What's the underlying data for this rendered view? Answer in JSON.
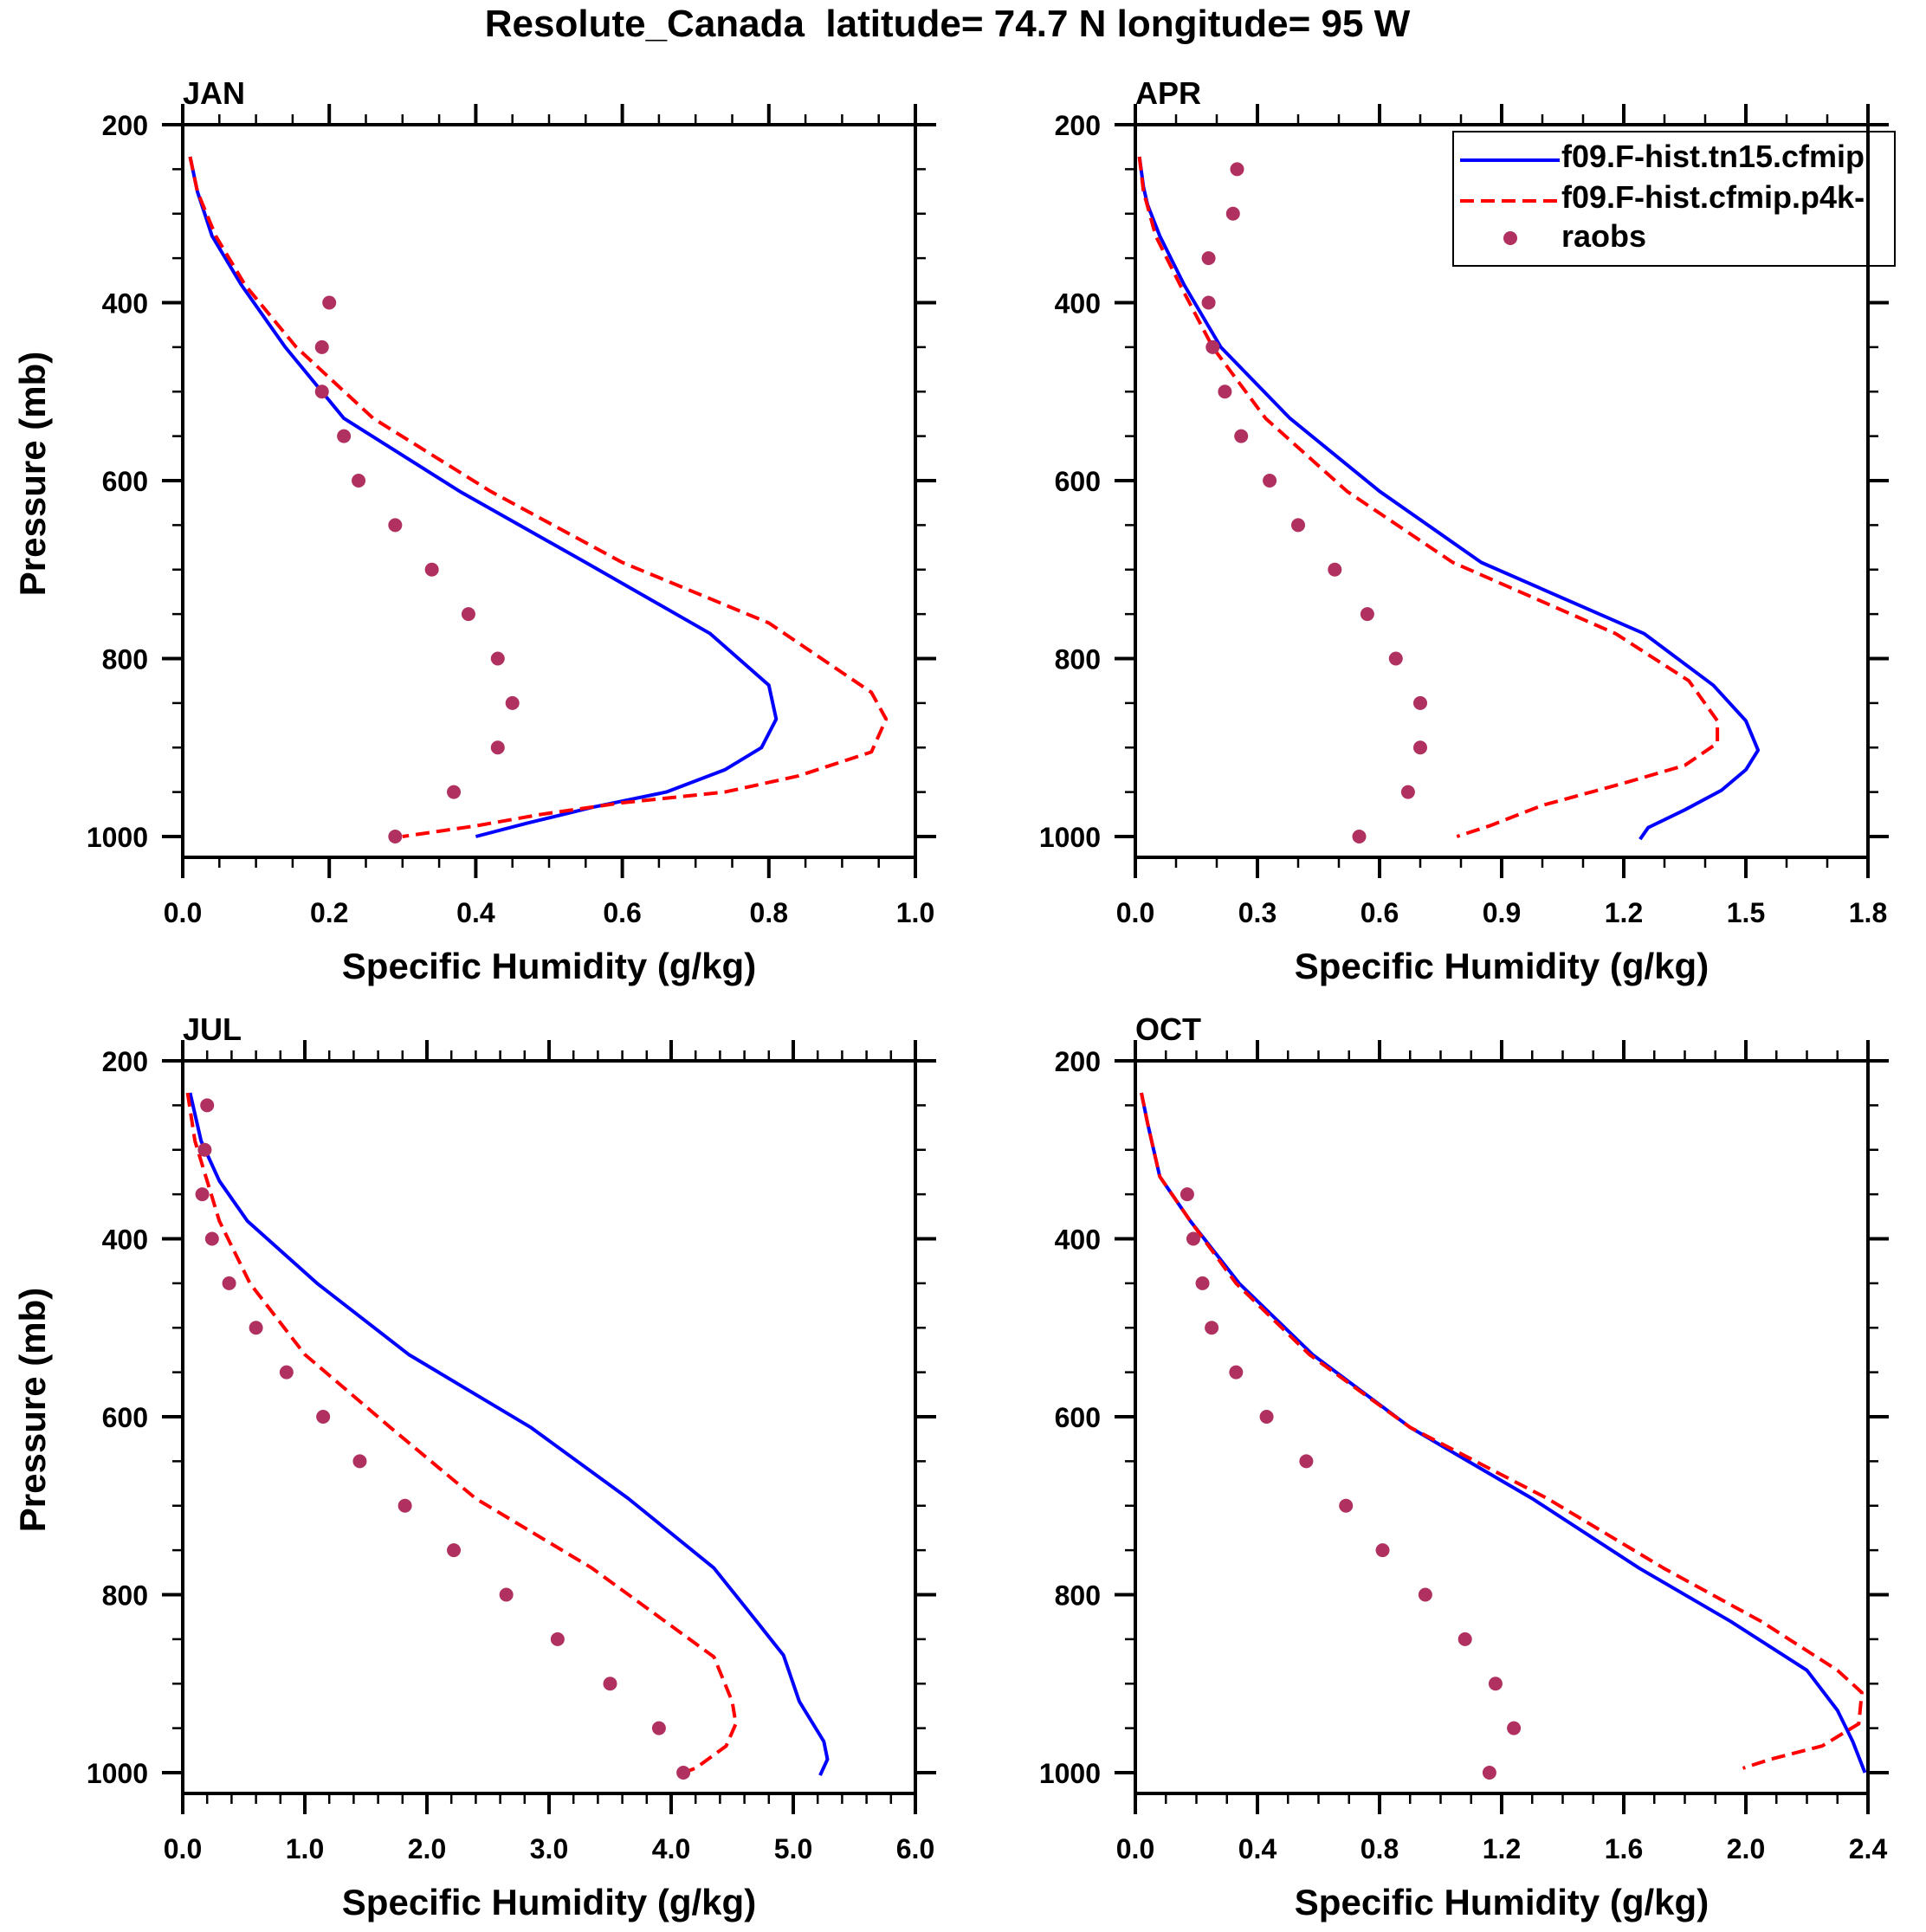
{
  "chart_data": {
    "type": "line",
    "title": "Resolute_Canada  latitude= 74.7 N longitude= 95 W",
    "layout": "2x2 grid",
    "legend": {
      "placement": "top-right of APR panel",
      "entries": [
        {
          "name": "f09.F-hist.tn15.cfmip",
          "style": "solid",
          "color": "#0000ff"
        },
        {
          "name": "f09.F-hist.cfmip.p4k-",
          "style": "dashed",
          "color": "#ff0000"
        },
        {
          "name": "raobs",
          "style": "marker",
          "color": "#b03060"
        }
      ]
    },
    "panels": [
      {
        "label": "JAN",
        "xlabel": "Specific Humidity (g/kg)",
        "ylabel": "Pressure (mb)",
        "xlim": [
          0,
          1.0
        ],
        "xticks": [
          "0.0",
          "0.2",
          "0.4",
          "0.6",
          "0.8",
          "1.0"
        ],
        "xminor_per_major": 3,
        "ylim": [
          200,
          1023
        ],
        "yticks": [
          "200",
          "400",
          "600",
          "800",
          "1000"
        ],
        "y_inverted": true,
        "series": [
          {
            "name": "f09.F-hist.tn15.cfmip",
            "points": [
              [
                0.01,
                236
              ],
              [
                0.02,
                275
              ],
              [
                0.04,
                325
              ],
              [
                0.08,
                380
              ],
              [
                0.14,
                450
              ],
              [
                0.22,
                530
              ],
              [
                0.38,
                613
              ],
              [
                0.55,
                692
              ],
              [
                0.72,
                772
              ],
              [
                0.8,
                830
              ],
              [
                0.81,
                868
              ],
              [
                0.79,
                900
              ],
              [
                0.74,
                925
              ],
              [
                0.66,
                950
              ],
              [
                0.56,
                967
              ],
              [
                0.47,
                985
              ],
              [
                0.4,
                1000
              ]
            ]
          },
          {
            "name": "f09.F-hist.cfmip.p4k-",
            "points": [
              [
                0.01,
                236
              ],
              [
                0.02,
                275
              ],
              [
                0.045,
                325
              ],
              [
                0.085,
                380
              ],
              [
                0.155,
                450
              ],
              [
                0.26,
                530
              ],
              [
                0.42,
                612
              ],
              [
                0.6,
                692
              ],
              [
                0.8,
                760
              ],
              [
                0.94,
                838
              ],
              [
                0.96,
                868
              ],
              [
                0.94,
                905
              ],
              [
                0.84,
                932
              ],
              [
                0.74,
                950
              ],
              [
                0.6,
                962
              ],
              [
                0.49,
                975
              ],
              [
                0.4,
                988
              ],
              [
                0.3,
                1000
              ]
            ]
          },
          {
            "name": "raobs",
            "points": [
              [
                0.2,
                400
              ],
              [
                0.19,
                450
              ],
              [
                0.19,
                500
              ],
              [
                0.22,
                550
              ],
              [
                0.24,
                600
              ],
              [
                0.29,
                650
              ],
              [
                0.34,
                700
              ],
              [
                0.39,
                750
              ],
              [
                0.43,
                800
              ],
              [
                0.45,
                850
              ],
              [
                0.43,
                900
              ],
              [
                0.37,
                950
              ],
              [
                0.29,
                1000
              ]
            ]
          }
        ]
      },
      {
        "label": "APR",
        "xlabel": "Specific Humidity (g/kg)",
        "ylabel": "",
        "xlim": [
          0,
          1.8
        ],
        "xticks": [
          "0.0",
          "0.3",
          "0.6",
          "0.9",
          "1.2",
          "1.5",
          "1.8"
        ],
        "xminor_per_major": 2,
        "ylim": [
          200,
          1023
        ],
        "yticks": [
          "200",
          "400",
          "600",
          "800",
          "1000"
        ],
        "y_inverted": true,
        "series": [
          {
            "name": "f09.F-hist.tn15.cfmip",
            "points": [
              [
                0.01,
                236
              ],
              [
                0.02,
                270
              ],
              [
                0.03,
                290
              ],
              [
                0.06,
                325
              ],
              [
                0.12,
                380
              ],
              [
                0.21,
                450
              ],
              [
                0.38,
                530
              ],
              [
                0.6,
                612
              ],
              [
                0.85,
                692
              ],
              [
                1.25,
                772
              ],
              [
                1.42,
                830
              ],
              [
                1.5,
                870
              ],
              [
                1.53,
                903
              ],
              [
                1.5,
                925
              ],
              [
                1.44,
                948
              ],
              [
                1.35,
                970
              ],
              [
                1.26,
                990
              ],
              [
                1.24,
                1003
              ]
            ]
          },
          {
            "name": "f09.F-hist.cfmip.p4k-",
            "points": [
              [
                0.01,
                236
              ],
              [
                0.02,
                275
              ],
              [
                0.05,
                325
              ],
              [
                0.11,
                380
              ],
              [
                0.19,
                450
              ],
              [
                0.32,
                530
              ],
              [
                0.52,
                612
              ],
              [
                0.78,
                692
              ],
              [
                1.18,
                772
              ],
              [
                1.36,
                825
              ],
              [
                1.43,
                870
              ],
              [
                1.43,
                895
              ],
              [
                1.35,
                920
              ],
              [
                1.2,
                940
              ],
              [
                1.0,
                965
              ],
              [
                0.87,
                988
              ],
              [
                0.79,
                1000
              ]
            ]
          },
          {
            "name": "raobs",
            "points": [
              [
                0.25,
                250
              ],
              [
                0.24,
                300
              ],
              [
                0.18,
                350
              ],
              [
                0.18,
                400
              ],
              [
                0.19,
                450
              ],
              [
                0.22,
                500
              ],
              [
                0.26,
                550
              ],
              [
                0.33,
                600
              ],
              [
                0.4,
                650
              ],
              [
                0.49,
                700
              ],
              [
                0.57,
                750
              ],
              [
                0.64,
                800
              ],
              [
                0.7,
                850
              ],
              [
                0.7,
                900
              ],
              [
                0.67,
                950
              ],
              [
                0.55,
                1000
              ]
            ]
          }
        ]
      },
      {
        "label": "JUL",
        "xlabel": "Specific Humidity (g/kg)",
        "ylabel": "Pressure (mb)",
        "xlim": [
          0,
          6.0
        ],
        "xticks": [
          "0.0",
          "1.0",
          "2.0",
          "3.0",
          "4.0",
          "5.0",
          "6.0"
        ],
        "xminor_per_major": 4,
        "ylim": [
          200,
          1023
        ],
        "yticks": [
          "200",
          "400",
          "600",
          "800",
          "1000"
        ],
        "y_inverted": true,
        "series": [
          {
            "name": "f09.F-hist.tn15.cfmip",
            "points": [
              [
                0.06,
                236
              ],
              [
                0.15,
                290
              ],
              [
                0.3,
                335
              ],
              [
                0.53,
                380
              ],
              [
                1.1,
                450
              ],
              [
                1.85,
                530
              ],
              [
                2.85,
                612
              ],
              [
                3.65,
                692
              ],
              [
                4.35,
                770
              ],
              [
                4.7,
                830
              ],
              [
                4.92,
                868
              ],
              [
                5.05,
                920
              ],
              [
                5.25,
                965
              ],
              [
                5.28,
                985
              ],
              [
                5.22,
                1003
              ]
            ]
          },
          {
            "name": "f09.F-hist.cfmip.p4k-",
            "points": [
              [
                0.04,
                236
              ],
              [
                0.1,
                290
              ],
              [
                0.2,
                335
              ],
              [
                0.3,
                380
              ],
              [
                0.55,
                450
              ],
              [
                1.0,
                530
              ],
              [
                1.7,
                612
              ],
              [
                2.4,
                692
              ],
              [
                3.35,
                770
              ],
              [
                3.95,
                830
              ],
              [
                4.35,
                870
              ],
              [
                4.5,
                920
              ],
              [
                4.53,
                945
              ],
              [
                4.45,
                970
              ],
              [
                4.2,
                995
              ],
              [
                4.1,
                1000
              ]
            ]
          },
          {
            "name": "raobs",
            "points": [
              [
                0.2,
                250
              ],
              [
                0.18,
                300
              ],
              [
                0.16,
                350
              ],
              [
                0.24,
                400
              ],
              [
                0.38,
                450
              ],
              [
                0.6,
                500
              ],
              [
                0.85,
                550
              ],
              [
                1.15,
                600
              ],
              [
                1.45,
                650
              ],
              [
                1.82,
                700
              ],
              [
                2.22,
                750
              ],
              [
                2.65,
                800
              ],
              [
                3.07,
                850
              ],
              [
                3.5,
                900
              ],
              [
                3.9,
                950
              ],
              [
                4.1,
                1000
              ]
            ]
          }
        ]
      },
      {
        "label": "OCT",
        "xlabel": "Specific Humidity (g/kg)",
        "ylabel": "",
        "xlim": [
          0,
          2.4
        ],
        "xticks": [
          "0.0",
          "0.4",
          "0.8",
          "1.2",
          "1.6",
          "2.0",
          "2.4"
        ],
        "xminor_per_major": 3,
        "ylim": [
          200,
          1023
        ],
        "yticks": [
          "200",
          "400",
          "600",
          "800",
          "1000"
        ],
        "y_inverted": true,
        "series": [
          {
            "name": "f09.F-hist.tn15.cfmip",
            "points": [
              [
                0.02,
                236
              ],
              [
                0.04,
                270
              ],
              [
                0.08,
                330
              ],
              [
                0.18,
                380
              ],
              [
                0.34,
                450
              ],
              [
                0.58,
                530
              ],
              [
                0.9,
                612
              ],
              [
                1.3,
                692
              ],
              [
                1.65,
                770
              ],
              [
                1.95,
                830
              ],
              [
                2.2,
                885
              ],
              [
                2.3,
                930
              ],
              [
                2.35,
                965
              ],
              [
                2.39,
                1000
              ]
            ]
          },
          {
            "name": "f09.F-hist.cfmip.p4k-",
            "points": [
              [
                0.02,
                236
              ],
              [
                0.04,
                270
              ],
              [
                0.08,
                330
              ],
              [
                0.18,
                380
              ],
              [
                0.33,
                450
              ],
              [
                0.57,
                530
              ],
              [
                0.9,
                612
              ],
              [
                1.35,
                692
              ],
              [
                1.73,
                770
              ],
              [
                2.05,
                830
              ],
              [
                2.3,
                885
              ],
              [
                2.38,
                910
              ],
              [
                2.37,
                945
              ],
              [
                2.25,
                970
              ],
              [
                2.08,
                985
              ],
              [
                1.99,
                995
              ]
            ]
          },
          {
            "name": "raobs",
            "points": [
              [
                0.17,
                350
              ],
              [
                0.19,
                400
              ],
              [
                0.22,
                450
              ],
              [
                0.25,
                500
              ],
              [
                0.33,
                550
              ],
              [
                0.43,
                600
              ],
              [
                0.56,
                650
              ],
              [
                0.69,
                700
              ],
              [
                0.81,
                750
              ],
              [
                0.95,
                800
              ],
              [
                1.08,
                850
              ],
              [
                1.18,
                900
              ],
              [
                1.24,
                950
              ],
              [
                1.16,
                1000
              ]
            ]
          }
        ]
      }
    ]
  }
}
